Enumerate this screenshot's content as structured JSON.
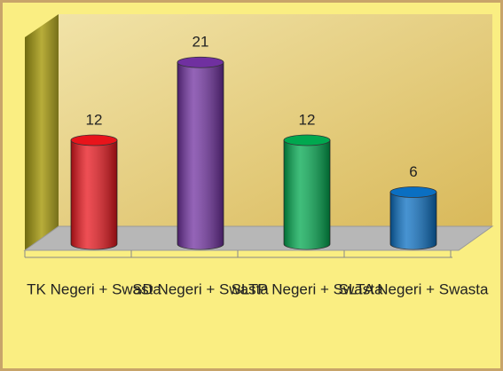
{
  "chart_data": {
    "type": "bar",
    "categories": [
      "TK Negeri + Swasta",
      "SD Negeri + Swasta",
      "SLTP Negeri + Swasta",
      "SLTA Negeri + Swasta"
    ],
    "values": [
      12,
      21,
      12,
      6
    ],
    "colors": [
      "#e8141b",
      "#7030a0",
      "#00a84f",
      "#0a6fc2"
    ]
  }
}
